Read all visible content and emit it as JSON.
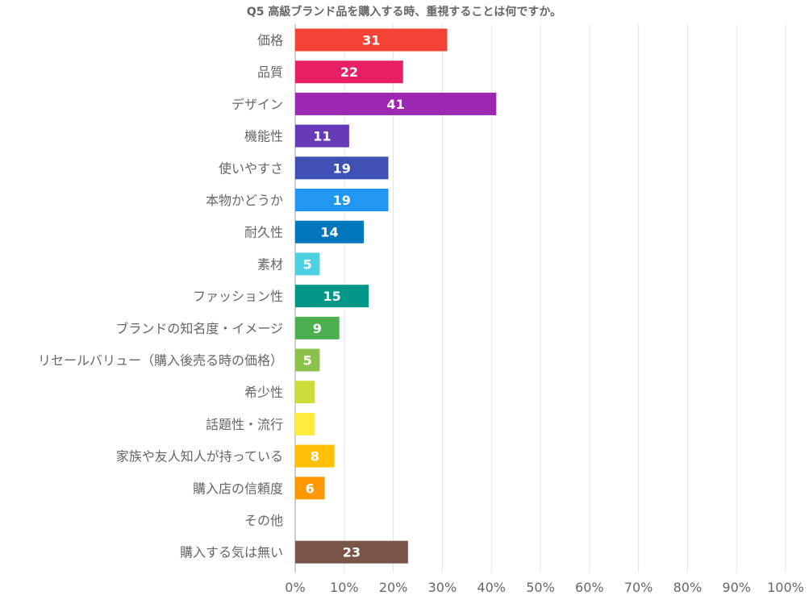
{
  "chart_data": {
    "type": "bar",
    "orientation": "horizontal",
    "title": "Q5 高級ブランド品を購入する時、重視することは何ですか。",
    "xlim": [
      0,
      100
    ],
    "x_ticks": [
      "0%",
      "10%",
      "20%",
      "30%",
      "40%",
      "50%",
      "60%",
      "70%",
      "80%",
      "90%",
      "100%"
    ],
    "grid": true,
    "legend": "none",
    "categories": [
      "価格",
      "品質",
      "デザイン",
      "機能性",
      "使いやすさ",
      "本物かどうか",
      "耐久性",
      "素材",
      "ファッション性",
      "ブランドの知名度・イメージ",
      "リセールバリュー（購入後売る時の価格）",
      "希少性",
      "話題性・流行",
      "家族や友人知人が持っている",
      "購入店の信頼度",
      "その他",
      "購入する気は無い"
    ],
    "values": [
      31,
      22,
      41,
      11,
      19,
      19,
      14,
      5,
      15,
      9,
      5,
      4,
      4,
      8,
      6,
      0,
      23
    ],
    "value_labels": [
      "31",
      "22",
      "41",
      "11",
      "19",
      "19",
      "14",
      "5",
      "15",
      "9",
      "5",
      "",
      "",
      "8",
      "6",
      "",
      "23"
    ],
    "colors": [
      "#f44336",
      "#e91e63",
      "#9c27b0",
      "#673ab7",
      "#3f51b5",
      "#2196f3",
      "#0277bd",
      "#4dd0e1",
      "#009688",
      "#4caf50",
      "#8bc34a",
      "#cddc39",
      "#ffeb3b",
      "#ffc107",
      "#ff9800",
      "#ff5722",
      "#795548"
    ]
  }
}
